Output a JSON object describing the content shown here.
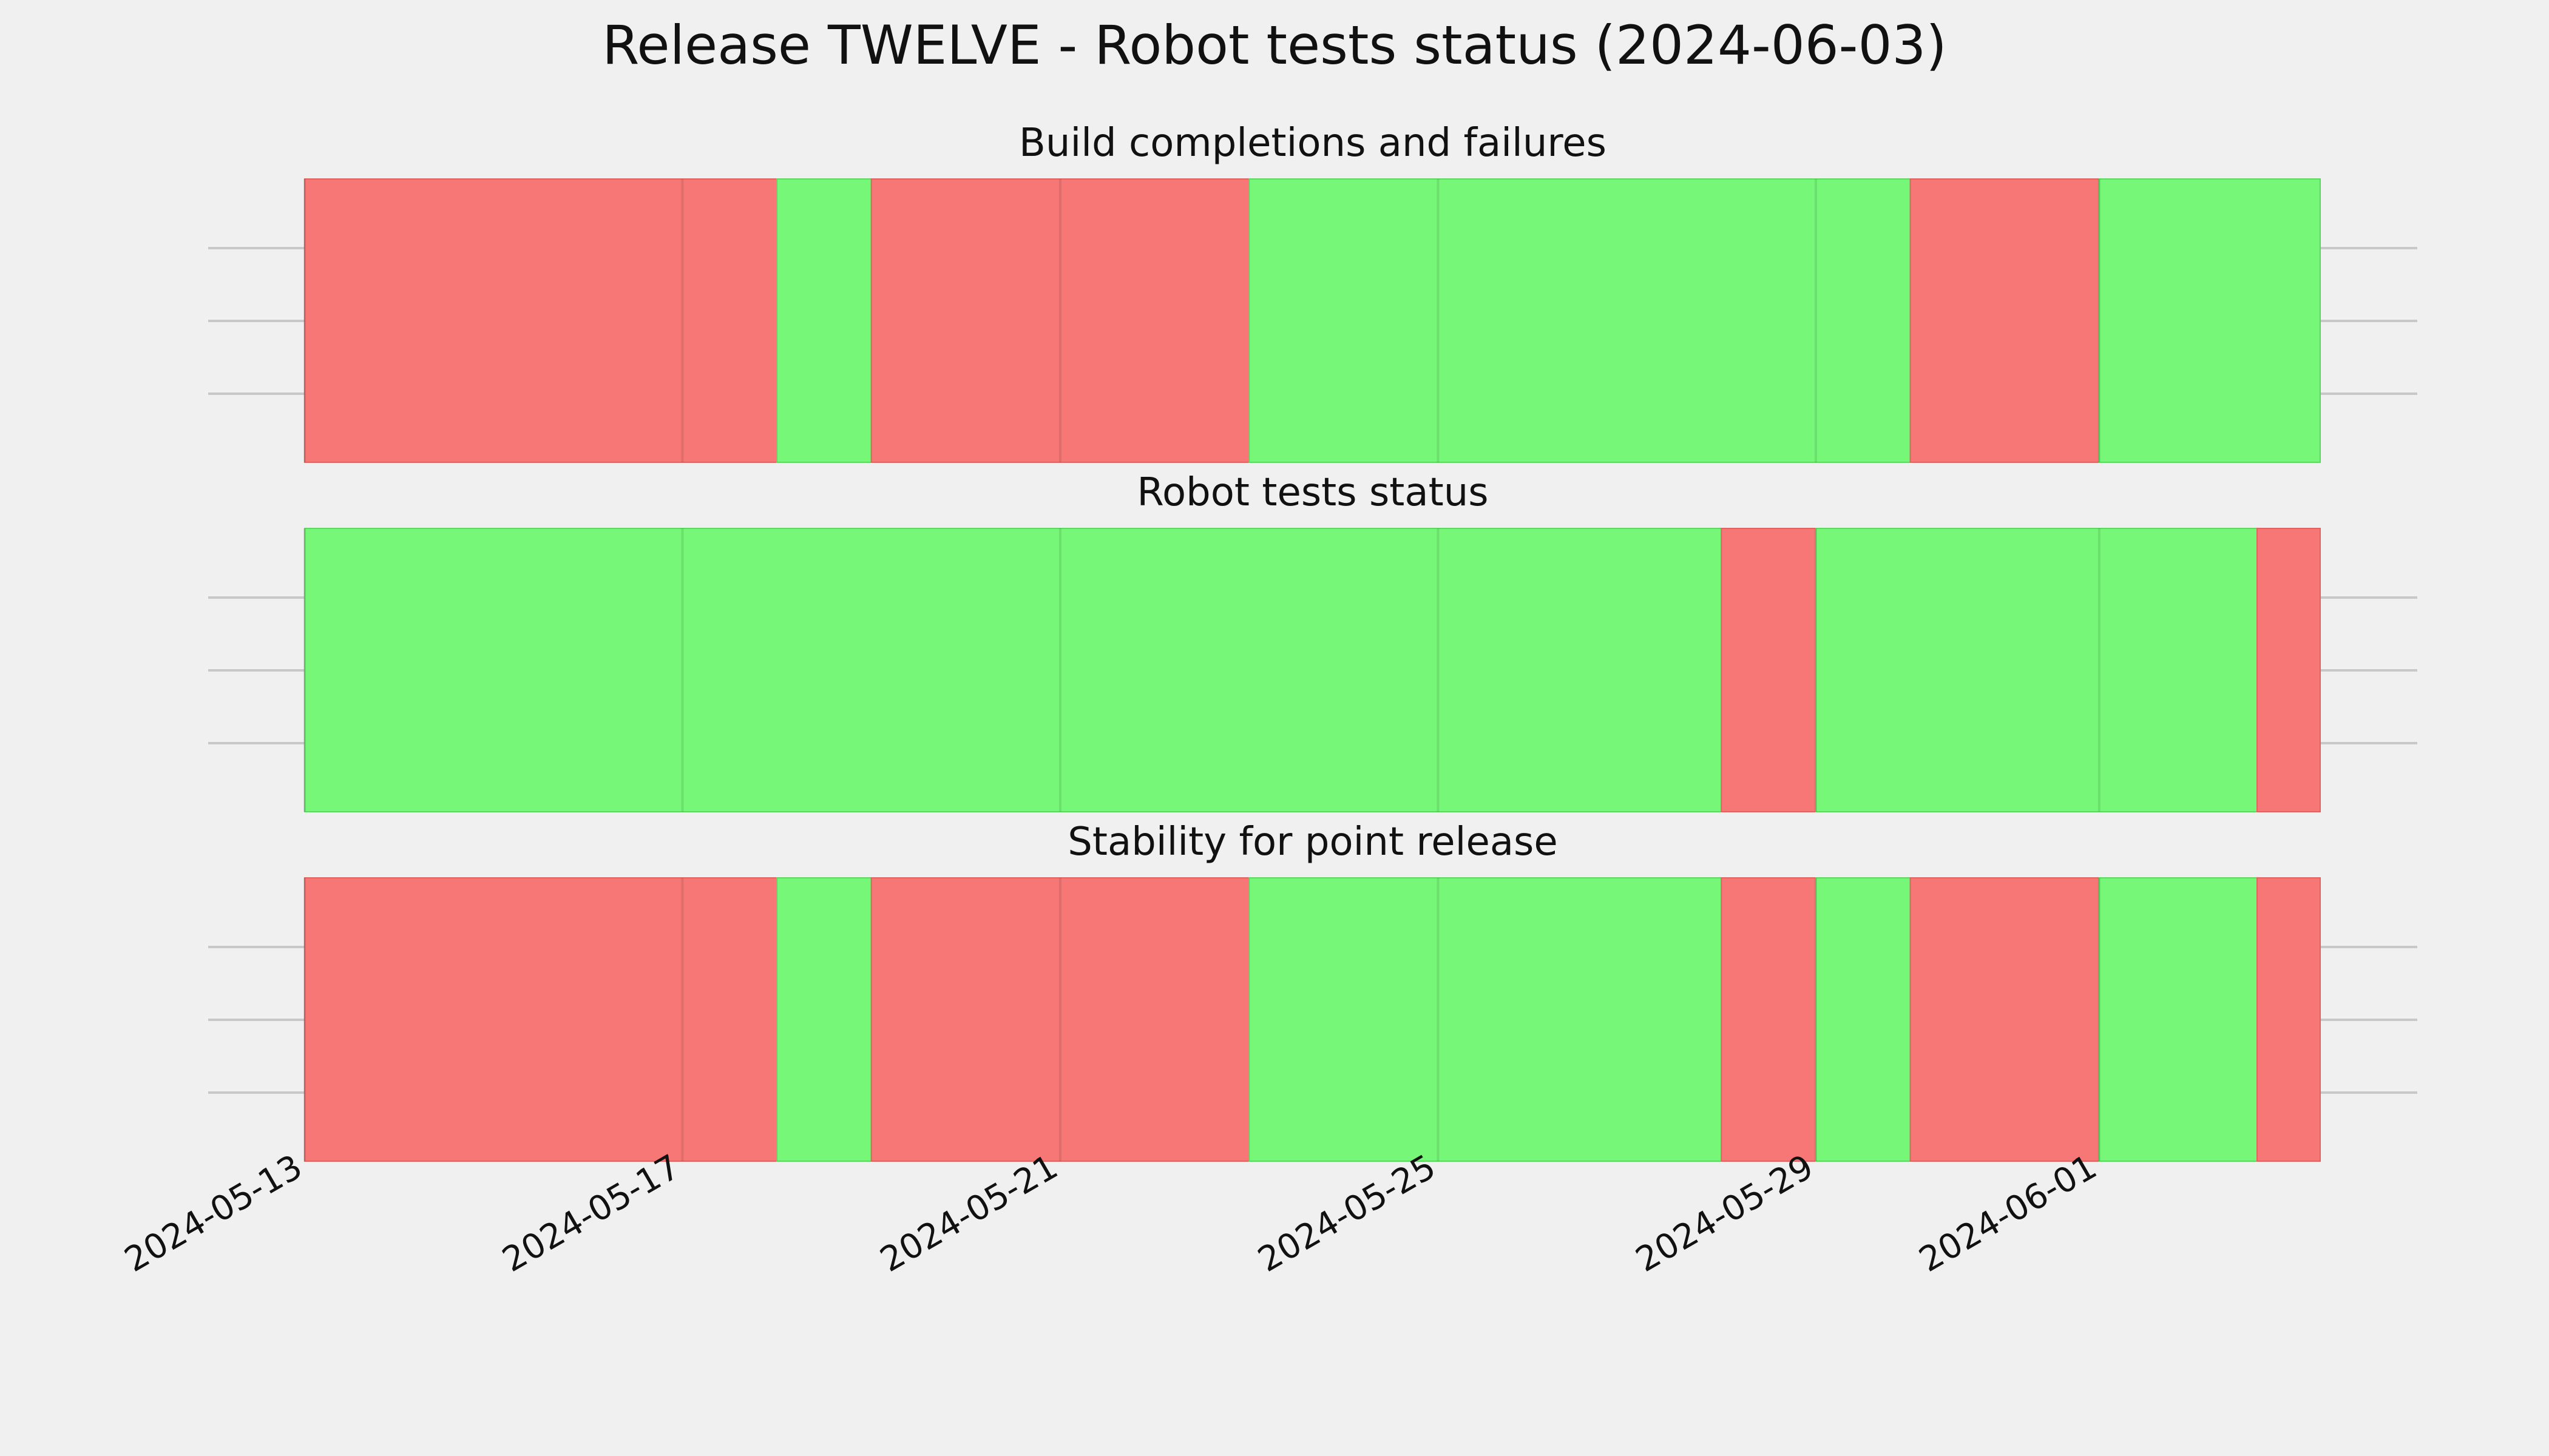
{
  "title": "Release TWELVE - Robot tests status (2024-06-03)",
  "colors": {
    "background": "#f0f0f0",
    "pass": "#76f777",
    "fail": "#f77776",
    "pass_edge": "#5fd663",
    "fail_edge": "#de6462",
    "gridline": "#c8c8c8"
  },
  "chart_data": [
    {
      "type": "timeline",
      "title": "Build completions and failures",
      "xlabel": "",
      "ylabel": "",
      "segments": [
        {
          "start": "2024-05-13",
          "end": "2024-05-18",
          "status": "fail"
        },
        {
          "start": "2024-05-18",
          "end": "2024-05-19",
          "status": "pass"
        },
        {
          "start": "2024-05-19",
          "end": "2024-05-23",
          "status": "fail"
        },
        {
          "start": "2024-05-23",
          "end": "2024-05-30",
          "status": "pass"
        },
        {
          "start": "2024-05-30",
          "end": "2024-06-01",
          "status": "fail"
        },
        {
          "start": "2024-06-01",
          "end": "2024-06-03",
          "status": "pass"
        }
      ]
    },
    {
      "type": "timeline",
      "title": "Robot tests status",
      "xlabel": "",
      "ylabel": "",
      "segments": [
        {
          "start": "2024-05-13",
          "end": "2024-05-28",
          "status": "pass"
        },
        {
          "start": "2024-05-28",
          "end": "2024-05-29",
          "status": "fail"
        },
        {
          "start": "2024-05-29",
          "end": "2024-06-03",
          "status": "pass"
        },
        {
          "start": "2024-06-03",
          "end": "2024-06-03",
          "status": "fail"
        }
      ]
    },
    {
      "type": "timeline",
      "title": "Stability for point release",
      "xlabel": "",
      "ylabel": "",
      "segments": [
        {
          "start": "2024-05-13",
          "end": "2024-05-18",
          "status": "fail"
        },
        {
          "start": "2024-05-18",
          "end": "2024-05-19",
          "status": "pass"
        },
        {
          "start": "2024-05-19",
          "end": "2024-05-23",
          "status": "fail"
        },
        {
          "start": "2024-05-23",
          "end": "2024-05-28",
          "status": "pass"
        },
        {
          "start": "2024-05-28",
          "end": "2024-05-29",
          "status": "fail"
        },
        {
          "start": "2024-05-29",
          "end": "2024-05-30",
          "status": "pass"
        },
        {
          "start": "2024-05-30",
          "end": "2024-06-01",
          "status": "fail"
        },
        {
          "start": "2024-06-01",
          "end": "2024-06-03",
          "status": "pass"
        },
        {
          "start": "2024-06-03",
          "end": "2024-06-03",
          "status": "fail"
        }
      ]
    }
  ],
  "x_axis": {
    "range": [
      "2024-05-13",
      "2024-06-03"
    ],
    "tick_labels": [
      "2024-05-13",
      "2024-05-17",
      "2024-05-21",
      "2024-05-25",
      "2024-05-29",
      "2024-06-01"
    ],
    "grid": true
  }
}
